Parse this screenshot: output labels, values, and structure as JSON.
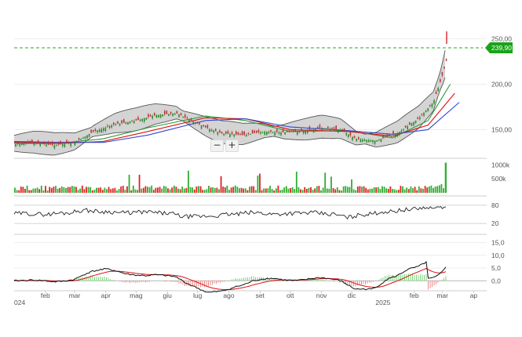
{
  "chart_data": {
    "type": "line",
    "subtype": "stock-technical-analysis",
    "x_labels": [
      "024",
      "feb",
      "mar",
      "apr",
      "mag",
      "giu",
      "lug",
      "ago",
      "set",
      "ott",
      "nov",
      "dic",
      "2025",
      "feb",
      "mar",
      "ap"
    ],
    "x_label_dates": [
      "2024-01",
      "2024-02",
      "2024-03",
      "2024-04",
      "2024-05",
      "2024-06",
      "2024-07",
      "2024-08",
      "2024-09",
      "2024-10",
      "2024-11",
      "2024-12",
      "2025-01",
      "2025-02",
      "2025-03",
      "2025-04"
    ],
    "price_panel": {
      "ylim": [
        122,
        258
      ],
      "y_ticks": [
        "250,00",
        "200,00",
        "150,00"
      ],
      "y_tick_values": [
        250,
        200,
        150
      ],
      "current_price_label": "239,90",
      "current_price": 239.9,
      "close_points": [
        [
          "2024-01-01",
          134
        ],
        [
          "2024-01-20",
          135
        ],
        [
          "2024-02-10",
          133
        ],
        [
          "2024-03-01",
          136
        ],
        [
          "2024-03-20",
          148
        ],
        [
          "2024-04-10",
          156
        ],
        [
          "2024-05-01",
          160
        ],
        [
          "2024-05-20",
          166
        ],
        [
          "2024-06-10",
          168
        ],
        [
          "2024-06-25",
          160
        ],
        [
          "2024-07-10",
          152
        ],
        [
          "2024-07-25",
          146
        ],
        [
          "2024-08-15",
          144
        ],
        [
          "2024-09-05",
          148
        ],
        [
          "2024-09-25",
          147
        ],
        [
          "2024-10-15",
          149
        ],
        [
          "2024-11-01",
          152
        ],
        [
          "2024-11-20",
          150
        ],
        [
          "2024-12-05",
          140
        ],
        [
          "2024-12-25",
          138
        ],
        [
          "2025-01-15",
          146
        ],
        [
          "2025-02-05",
          162
        ],
        [
          "2025-02-20",
          180
        ],
        [
          "2025-03-01",
          210
        ],
        [
          "2025-03-05",
          226
        ]
      ],
      "ma_series": [
        {
          "color": "#2c9b3a",
          "values": [
            [
              0,
              135
            ],
            [
              0.1,
              135
            ],
            [
              0.2,
              140
            ],
            [
              0.3,
              152
            ],
            [
              0.43,
              165
            ],
            [
              0.52,
              160
            ],
            [
              0.62,
              148
            ],
            [
              0.75,
              149
            ],
            [
              0.85,
              141
            ],
            [
              0.93,
              160
            ],
            [
              0.98,
              200
            ]
          ]
        },
        {
          "color": "#d11",
          "values": [
            [
              0,
              136
            ],
            [
              0.1,
              135
            ],
            [
              0.2,
              137
            ],
            [
              0.3,
              148
            ],
            [
              0.43,
              163
            ],
            [
              0.52,
              162
            ],
            [
              0.62,
              150
            ],
            [
              0.75,
              148
            ],
            [
              0.85,
              143
            ],
            [
              0.93,
              155
            ],
            [
              0.99,
              190
            ]
          ]
        },
        {
          "color": "#3347cc",
          "values": [
            [
              0,
              137
            ],
            [
              0.1,
              136
            ],
            [
              0.2,
              136
            ],
            [
              0.3,
              144
            ],
            [
              0.43,
              160
            ],
            [
              0.52,
              162
            ],
            [
              0.62,
              153
            ],
            [
              0.75,
              149
            ],
            [
              0.85,
              145
            ],
            [
              0.93,
              150
            ],
            [
              1.0,
              180
            ]
          ]
        }
      ],
      "bollinger": {
        "color": "#555555",
        "fill": "#d4d4d4"
      }
    },
    "volume_panel": {
      "y_ticks": [
        "1000k",
        "500k"
      ],
      "y_tick_values": [
        1000000,
        500000
      ],
      "ylim": [
        0,
        1150000
      ],
      "colors": {
        "up": "#2fae2f",
        "down": "#d22"
      }
    },
    "rsi_panel": {
      "y_ticks": [
        "80",
        "20"
      ],
      "y_tick_values": [
        80,
        20
      ],
      "ylim": [
        0,
        100
      ],
      "line_color": "#222222"
    },
    "macd_panel": {
      "y_ticks": [
        "15,0",
        "10,0",
        "5,0",
        "0,0"
      ],
      "y_tick_values": [
        15,
        10,
        5,
        0
      ],
      "ylim": [
        -3,
        17
      ],
      "macd_color": "#111111",
      "signal_color": "#d11",
      "histogram_up": "#7ed37e",
      "histogram_down": "#e88"
    },
    "colors": {
      "grid": "#eeeeee",
      "price_marker": "#19a319",
      "current_price_line": "#22aa22"
    }
  },
  "controls": {
    "zoom_out": "−",
    "zoom_in": "+"
  }
}
